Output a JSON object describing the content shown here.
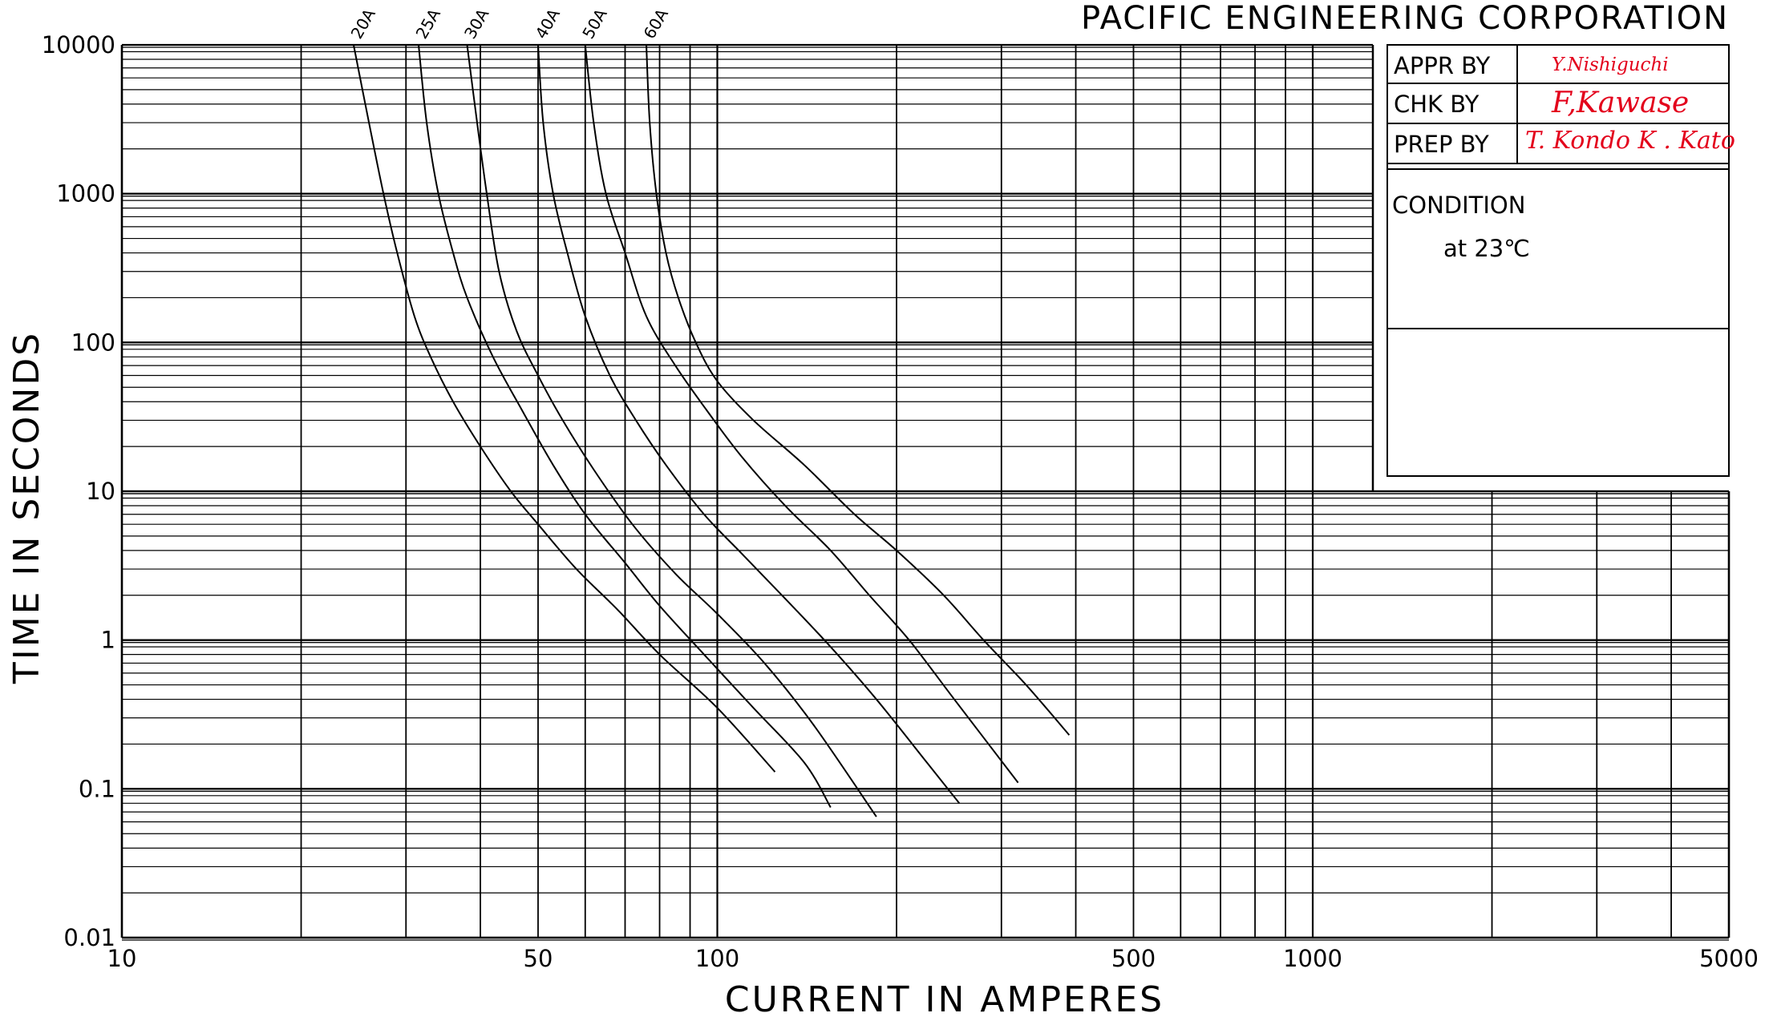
{
  "title_block": {
    "company": "PACIFIC ENGINEERING CORPORATION",
    "rows": [
      {
        "label": "APPR BY",
        "signature": "Y.Nishiguchi"
      },
      {
        "label": "CHK BY",
        "signature": "F,Kawase"
      },
      {
        "label": "PREP BY",
        "signature": "T. Kondo K . Kato"
      }
    ],
    "condition_label": "CONDITION",
    "condition_value": "at 23℃",
    "signature_color": "#e3001b"
  },
  "chart_data": {
    "type": "line",
    "title": "",
    "xlabel": "CURRENT IN AMPERES",
    "ylabel": "TIME IN SECONDS",
    "xscale": "log",
    "yscale": "log",
    "xlim": [
      10,
      5000
    ],
    "ylim": [
      0.01,
      10000
    ],
    "grid": true,
    "x_tick_labels": [
      {
        "value": 10,
        "label": "10"
      },
      {
        "value": 50,
        "label": "50"
      },
      {
        "value": 100,
        "label": "100"
      },
      {
        "value": 500,
        "label": "500"
      },
      {
        "value": 1000,
        "label": "1000"
      },
      {
        "value": 5000,
        "label": "5000"
      }
    ],
    "y_tick_labels": [
      {
        "value": 10000,
        "label": "10000"
      },
      {
        "value": 1000,
        "label": "1000"
      },
      {
        "value": 100,
        "label": "100"
      },
      {
        "value": 10,
        "label": "10"
      },
      {
        "value": 1,
        "label": "1"
      },
      {
        "value": 0.1,
        "label": "0.1"
      },
      {
        "value": 0.01,
        "label": "0.01"
      }
    ],
    "series": [
      {
        "name": "20A",
        "points": [
          [
            24.5,
            10000
          ],
          [
            26,
            3000
          ],
          [
            27.5,
            1000
          ],
          [
            29,
            400
          ],
          [
            31,
            150
          ],
          [
            33,
            80
          ],
          [
            36,
            40
          ],
          [
            40,
            20
          ],
          [
            45,
            10
          ],
          [
            50,
            6
          ],
          [
            58,
            3
          ],
          [
            68,
            1.6
          ],
          [
            80,
            0.8
          ],
          [
            100,
            0.35
          ],
          [
            125,
            0.13
          ]
        ]
      },
      {
        "name": "25A",
        "points": [
          [
            31.5,
            10000
          ],
          [
            32.5,
            3000
          ],
          [
            34,
            1000
          ],
          [
            36,
            400
          ],
          [
            38,
            200
          ],
          [
            42,
            80
          ],
          [
            47,
            35
          ],
          [
            53,
            15
          ],
          [
            60,
            7
          ],
          [
            70,
            3.3
          ],
          [
            80,
            1.7
          ],
          [
            95,
            0.8
          ],
          [
            115,
            0.35
          ],
          [
            140,
            0.15
          ],
          [
            155,
            0.075
          ]
        ]
      },
      {
        "name": "30A",
        "points": [
          [
            38,
            10000
          ],
          [
            39.5,
            3000
          ],
          [
            41,
            1000
          ],
          [
            43,
            300
          ],
          [
            46,
            120
          ],
          [
            50,
            60
          ],
          [
            55,
            30
          ],
          [
            62,
            14
          ],
          [
            72,
            6
          ],
          [
            85,
            2.8
          ],
          [
            100,
            1.5
          ],
          [
            120,
            0.7
          ],
          [
            145,
            0.27
          ],
          [
            185,
            0.065
          ]
        ]
      },
      {
        "name": "40A",
        "points": [
          [
            50,
            10000
          ],
          [
            51,
            3000
          ],
          [
            53,
            1000
          ],
          [
            56,
            400
          ],
          [
            60,
            150
          ],
          [
            66,
            60
          ],
          [
            73,
            30
          ],
          [
            82,
            15
          ],
          [
            95,
            7
          ],
          [
            110,
            3.8
          ],
          [
            130,
            1.9
          ],
          [
            155,
            0.9
          ],
          [
            185,
            0.4
          ],
          [
            225,
            0.15
          ],
          [
            255,
            0.08
          ]
        ]
      },
      {
        "name": "50A",
        "points": [
          [
            60,
            10000
          ],
          [
            62,
            3000
          ],
          [
            65,
            1000
          ],
          [
            70,
            400
          ],
          [
            76,
            150
          ],
          [
            85,
            70
          ],
          [
            96,
            35
          ],
          [
            110,
            17
          ],
          [
            130,
            8
          ],
          [
            155,
            4
          ],
          [
            180,
            2
          ],
          [
            210,
            1
          ],
          [
            250,
            0.4
          ],
          [
            320,
            0.11
          ]
        ]
      },
      {
        "name": "60A",
        "points": [
          [
            76,
            10000
          ],
          [
            77,
            3000
          ],
          [
            79,
            1000
          ],
          [
            82,
            400
          ],
          [
            86,
            200
          ],
          [
            92,
            100
          ],
          [
            100,
            55
          ],
          [
            115,
            30
          ],
          [
            140,
            15
          ],
          [
            170,
            7
          ],
          [
            200,
            4
          ],
          [
            240,
            2
          ],
          [
            280,
            1
          ],
          [
            330,
            0.5
          ],
          [
            390,
            0.23
          ]
        ]
      }
    ]
  }
}
